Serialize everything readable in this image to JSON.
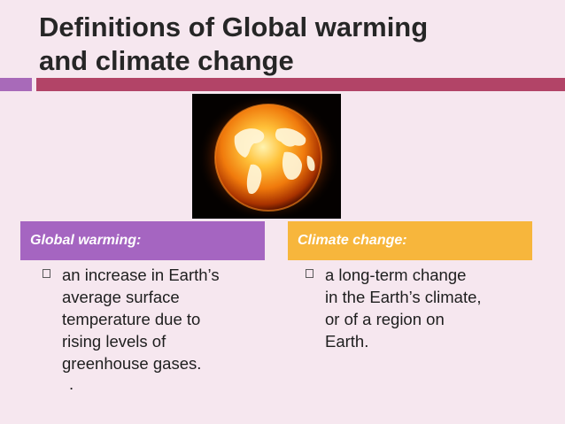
{
  "slide": {
    "title_line1": "Definitions of Global warming",
    "title_line2": "and climate change",
    "colors": {
      "background": "#f6e7ef",
      "accent_purple": "#a86ab9",
      "accent_red": "#b24467",
      "gw_header_bg": "#a565c1",
      "cc_header_bg": "#f7b63c"
    },
    "image": {
      "icon": "burning-globe-image"
    },
    "global_warming": {
      "header": "Global warming:",
      "lines": [
        "an increase in Earth’s",
        "average surface",
        "temperature due to",
        "rising levels of",
        "greenhouse gases."
      ],
      "trailing": "."
    },
    "climate_change": {
      "header": "Climate change:",
      "lines": [
        "a long-term change",
        "in the Earth’s climate,",
        "or of a region on",
        "Earth."
      ]
    }
  }
}
